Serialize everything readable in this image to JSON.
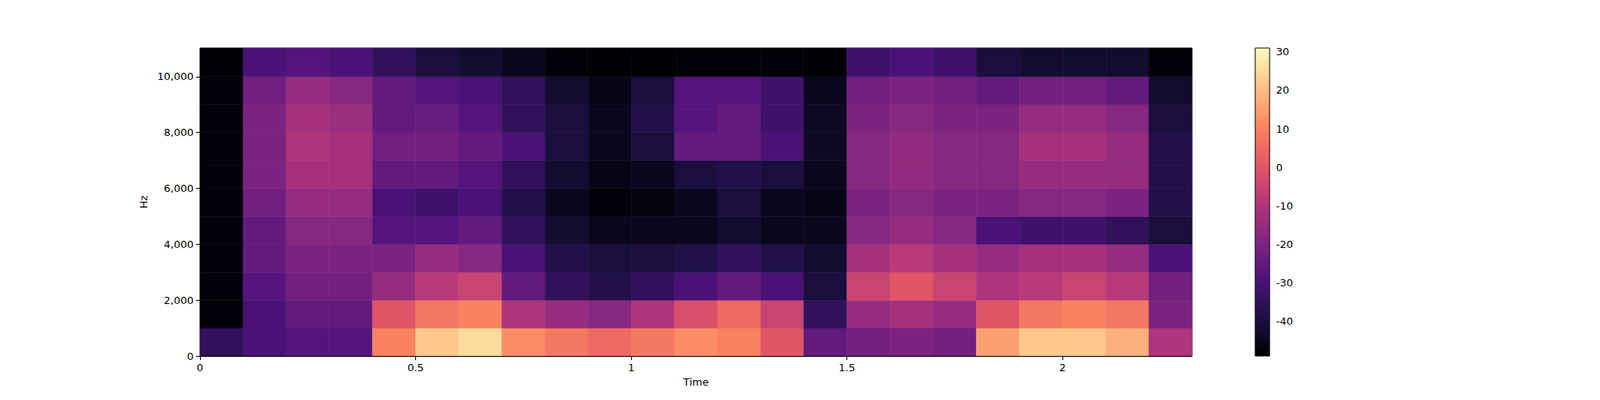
{
  "chart_data": {
    "type": "heatmap",
    "xlabel": "Time",
    "ylabel": "Hz",
    "xlim": [
      0,
      2.3
    ],
    "xticks": [
      0,
      0.5,
      1,
      1.5,
      2
    ],
    "ylim": [
      0,
      11025
    ],
    "yticks": [
      0,
      2000,
      4000,
      6000,
      8000,
      10000
    ],
    "grid": false,
    "x_bins": [
      0,
      0.1,
      0.2,
      0.3,
      0.4,
      0.5,
      0.6,
      0.7,
      0.8,
      0.9,
      1.0,
      1.1,
      1.2,
      1.3,
      1.4,
      1.5,
      1.6,
      1.7,
      1.8,
      1.9,
      2.0,
      2.1,
      2.2,
      2.3
    ],
    "y_bins": [
      0,
      1000,
      2000,
      3000,
      4000,
      5000,
      6000,
      7000,
      8000,
      9000,
      10000,
      11025
    ],
    "cells": [
      [
        -35,
        -48,
        -48,
        -48,
        -48,
        -48,
        -48,
        -48,
        -48,
        -48,
        -49
      ],
      [
        -30,
        -30,
        -28,
        -25,
        -25,
        -22,
        -20,
        -20,
        -20,
        -22,
        -30
      ],
      [
        -28,
        -25,
        -22,
        -20,
        -18,
        -15,
        -12,
        -10,
        -12,
        -15,
        -28
      ],
      [
        -28,
        -25,
        -22,
        -20,
        -18,
        -15,
        -12,
        -12,
        -14,
        -18,
        -30
      ],
      [
        10,
        0,
        -15,
        -20,
        -28,
        -30,
        -25,
        -22,
        -25,
        -25,
        -35
      ],
      [
        22,
        8,
        -8,
        -15,
        -28,
        -32,
        -25,
        -22,
        -24,
        -28,
        -40
      ],
      [
        25,
        10,
        -5,
        -18,
        -25,
        -30,
        -28,
        -25,
        -28,
        -30,
        -42
      ],
      [
        12,
        -10,
        -25,
        -30,
        -35,
        -38,
        -35,
        -30,
        -35,
        -35,
        -45
      ],
      [
        8,
        -15,
        -35,
        -38,
        -42,
        -45,
        -42,
        -40,
        -40,
        -42,
        -48
      ],
      [
        5,
        -18,
        -38,
        -40,
        -45,
        -48,
        -46,
        -45,
        -45,
        -46,
        -49
      ],
      [
        8,
        -10,
        -35,
        -40,
        -45,
        -47,
        -45,
        -40,
        -38,
        -40,
        -49
      ],
      [
        12,
        -2,
        -30,
        -38,
        -45,
        -45,
        -40,
        -25,
        -28,
        -28,
        -48
      ],
      [
        10,
        5,
        -25,
        -35,
        -42,
        -40,
        -38,
        -25,
        -25,
        -28,
        -48
      ],
      [
        0,
        -5,
        -30,
        -38,
        -45,
        -45,
        -40,
        -30,
        -32,
        -32,
        -48
      ],
      [
        -25,
        -35,
        -40,
        -42,
        -45,
        -46,
        -45,
        -44,
        -44,
        -45,
        -49
      ],
      [
        -22,
        -15,
        -5,
        -12,
        -18,
        -20,
        -18,
        -18,
        -20,
        -22,
        -32
      ],
      [
        -20,
        -12,
        0,
        -8,
        -15,
        -18,
        -16,
        -16,
        -18,
        -20,
        -30
      ],
      [
        -22,
        -15,
        -5,
        -12,
        -18,
        -20,
        -18,
        -18,
        -20,
        -22,
        -32
      ],
      [
        15,
        0,
        -10,
        -15,
        -30,
        -20,
        -18,
        -18,
        -20,
        -25,
        -40
      ],
      [
        22,
        8,
        -8,
        -12,
        -32,
        -18,
        -15,
        -12,
        -15,
        -22,
        -42
      ],
      [
        22,
        10,
        -5,
        -12,
        -32,
        -18,
        -15,
        -12,
        -15,
        -22,
        -42
      ],
      [
        18,
        8,
        -8,
        -15,
        -35,
        -20,
        -15,
        -15,
        -18,
        -25,
        -42
      ],
      [
        -10,
        -20,
        -22,
        -30,
        -40,
        -38,
        -38,
        -38,
        -40,
        -42,
        -48
      ]
    ],
    "colorbar": {
      "range": [
        -49,
        31
      ],
      "ticks": [
        -40,
        -30,
        -20,
        -10,
        0,
        10,
        20,
        30
      ]
    }
  }
}
